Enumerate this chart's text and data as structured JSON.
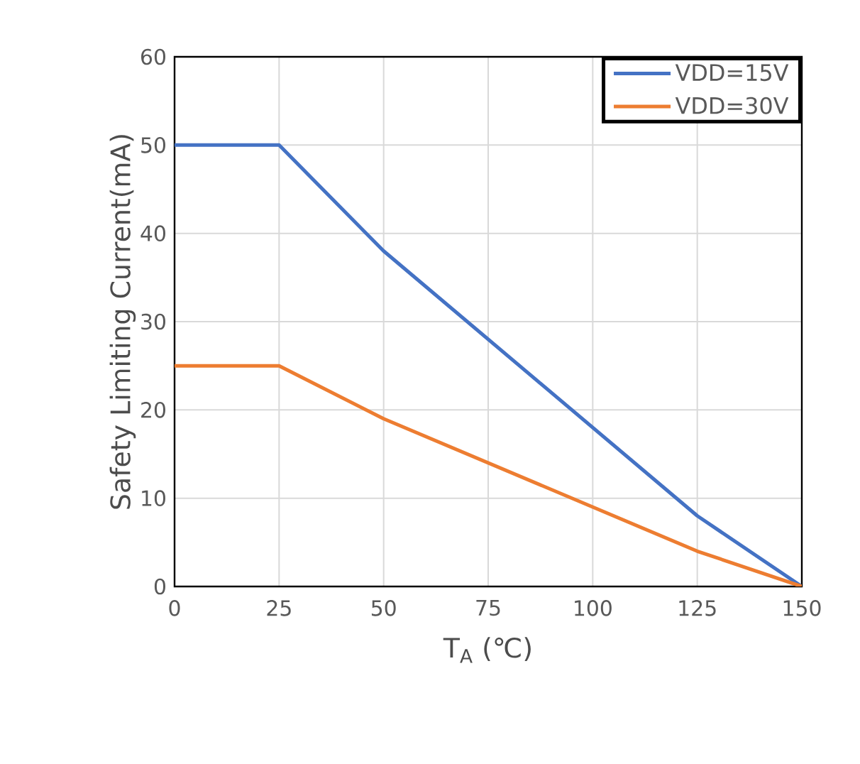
{
  "chart_data": {
    "type": "line",
    "xlabel": "T$_{A}$ (℃)",
    "ylabel": "Safety Limiting Current(mA)",
    "x": [
      0,
      25,
      50,
      125,
      150
    ],
    "series": [
      {
        "name": "VDD=15V",
        "color": "#4472c4",
        "values": [
          50,
          50,
          38,
          8,
          0
        ]
      },
      {
        "name": "VDD=30V",
        "color": "#ed7d31",
        "values": [
          25,
          25,
          19,
          4,
          0
        ]
      }
    ],
    "xlim": [
      0,
      150
    ],
    "xticks": [
      0,
      25,
      50,
      75,
      100,
      125,
      150
    ],
    "ylim": [
      0,
      60
    ],
    "yticks": [
      0,
      10,
      20,
      30,
      40,
      50,
      60
    ],
    "grid": true,
    "legend": "top right",
    "marker": "none",
    "line_style": "solid"
  }
}
